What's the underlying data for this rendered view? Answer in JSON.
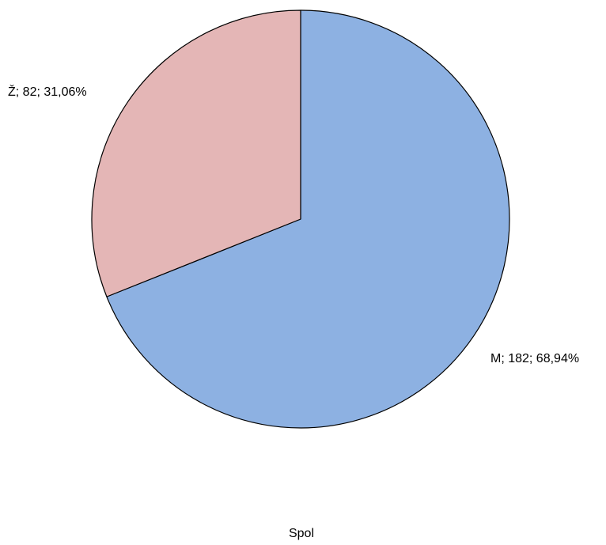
{
  "chart_data": {
    "type": "pie",
    "title": "",
    "xlabel": "Spol",
    "slices": [
      {
        "label": "M",
        "value": 182,
        "percent": "68,94%",
        "text": "M; 182; 68,94%",
        "color": "#8db1e2"
      },
      {
        "label": "Ž",
        "value": 82,
        "percent": "31,06%",
        "text": "Ž; 82; 31,06%",
        "color": "#e4b6b6"
      }
    ],
    "start_angle_deg": 0,
    "direction": "clockwise",
    "outline_color": "#000000"
  }
}
